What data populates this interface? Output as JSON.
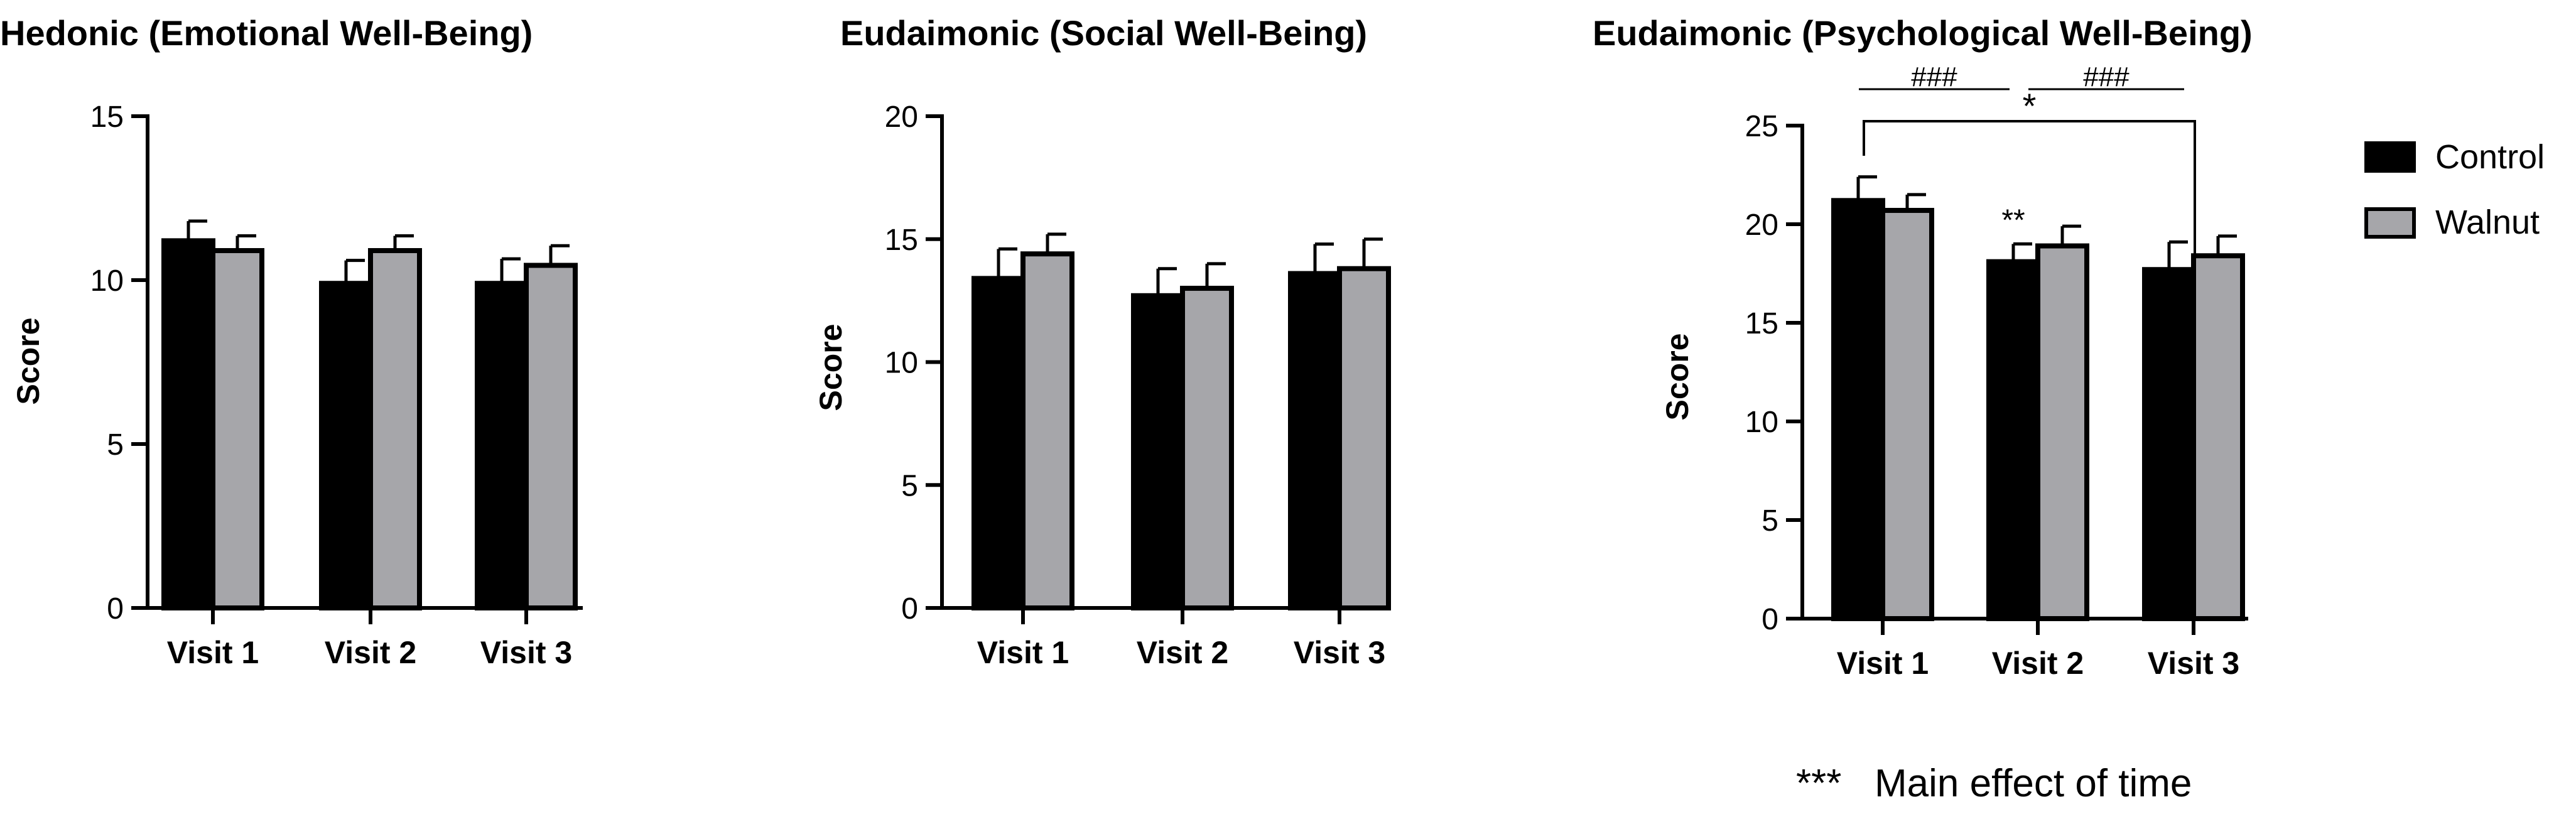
{
  "chart_data": [
    {
      "type": "bar",
      "title": "Hedonic (Emotional Well-Being)",
      "ylabel": "Score",
      "ylim": [
        0,
        15
      ],
      "yticks": [
        0,
        5,
        10,
        15
      ],
      "categories": [
        "Visit 1",
        "Visit 2",
        "Visit 3"
      ],
      "series": [
        {
          "name": "Control",
          "values": [
            11.2,
            9.9,
            9.9
          ],
          "errors": [
            0.6,
            0.7,
            0.75
          ]
        },
        {
          "name": "Walnut",
          "values": [
            10.9,
            10.9,
            10.45
          ],
          "errors": [
            0.45,
            0.45,
            0.6
          ]
        }
      ],
      "annotations": []
    },
    {
      "type": "bar",
      "title": "Eudaimonic (Social Well-Being)",
      "ylabel": "Score",
      "ylim": [
        0,
        20
      ],
      "yticks": [
        0,
        5,
        10,
        15,
        20
      ],
      "categories": [
        "Visit 1",
        "Visit 2",
        "Visit 3"
      ],
      "series": [
        {
          "name": "Control",
          "values": [
            13.4,
            12.7,
            13.6
          ],
          "errors": [
            1.2,
            1.1,
            1.2
          ]
        },
        {
          "name": "Walnut",
          "values": [
            14.4,
            13.0,
            13.8
          ],
          "errors": [
            0.8,
            1.0,
            1.2
          ]
        }
      ],
      "annotations": []
    },
    {
      "type": "bar",
      "title": "Eudaimonic (Psychological Well-Being)",
      "ylabel": "Score",
      "ylim": [
        0,
        25
      ],
      "yticks": [
        0,
        5,
        10,
        15,
        20,
        25
      ],
      "categories": [
        "Visit 1",
        "Visit 2",
        "Visit 3"
      ],
      "series": [
        {
          "name": "Control",
          "values": [
            21.2,
            18.1,
            17.7
          ],
          "errors": [
            1.2,
            0.9,
            1.4
          ]
        },
        {
          "name": "Walnut",
          "values": [
            20.7,
            18.9,
            18.4
          ],
          "errors": [
            0.8,
            1.0,
            1.0
          ]
        }
      ],
      "annotations": [
        {
          "text": "###",
          "between": [
            "Visit 1",
            "Visit 2"
          ]
        },
        {
          "text": "###",
          "between": [
            "Visit 2",
            "Visit 3"
          ]
        },
        {
          "text": "*",
          "between": [
            "Visit 1",
            "Visit 3"
          ]
        },
        {
          "text": "**",
          "at": "Visit 2",
          "series": "Control"
        }
      ]
    }
  ],
  "legend": {
    "items": [
      {
        "label": "Control",
        "color": "#000000"
      },
      {
        "label": "Walnut",
        "color": "#a6a6aa"
      }
    ]
  },
  "footnote": {
    "symbol": "***",
    "text": "Main effect of time"
  },
  "colors": {
    "control": "#000000",
    "walnut": "#a6a6aa",
    "axis": "#000000"
  }
}
